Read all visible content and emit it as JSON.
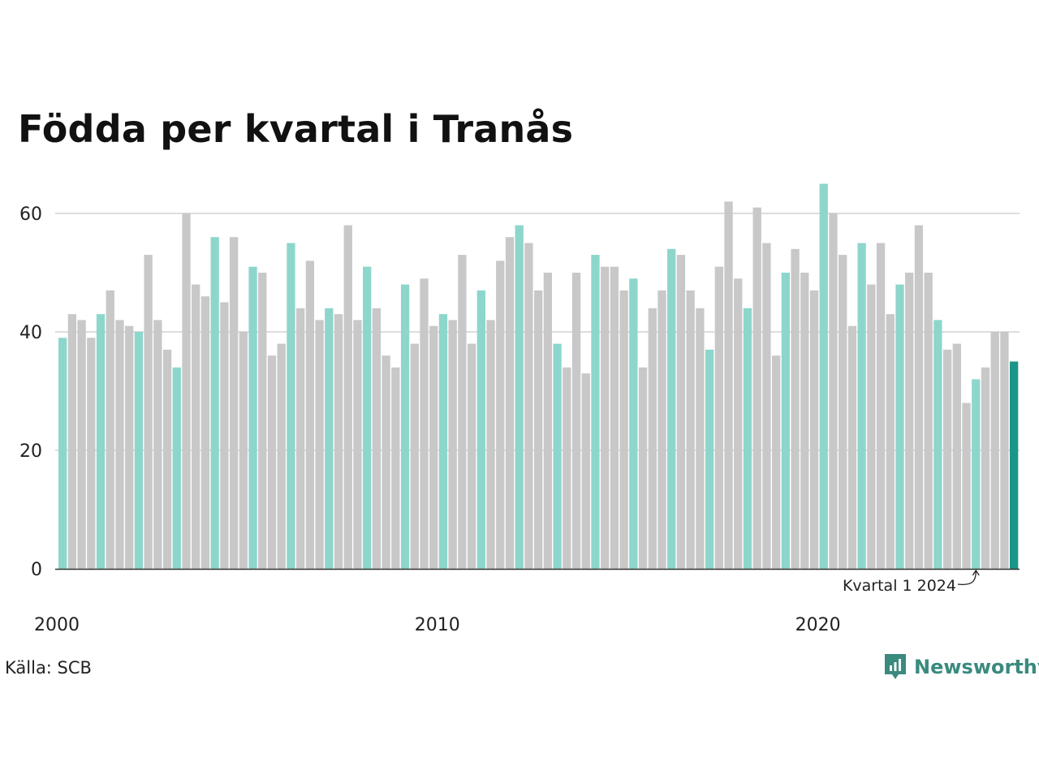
{
  "title": "Födda per kvartal i Tranås",
  "source": "Källa: SCB",
  "brand": "Newsworthy",
  "colors": {
    "q1": "#8dd6cc",
    "other": "#c8c8c8",
    "latest": "#1a9688",
    "grid": "#dddddd",
    "axis": "#333333",
    "brand": "#3a8a7e"
  },
  "chart_data": {
    "type": "bar",
    "start_year": 2000,
    "start_quarter": 1,
    "values": [
      39,
      43,
      42,
      39,
      43,
      47,
      42,
      41,
      40,
      53,
      42,
      37,
      34,
      60,
      48,
      46,
      56,
      45,
      56,
      40,
      51,
      50,
      36,
      38,
      55,
      44,
      52,
      42,
      44,
      43,
      58,
      42,
      51,
      44,
      36,
      34,
      48,
      38,
      49,
      41,
      43,
      42,
      53,
      38,
      47,
      42,
      52,
      56,
      58,
      55,
      47,
      50,
      38,
      34,
      50,
      33,
      53,
      51,
      51,
      47,
      49,
      34,
      44,
      47,
      54,
      53,
      47,
      44,
      37,
      51,
      62,
      49,
      44,
      61,
      55,
      36,
      50,
      54,
      50,
      47,
      65,
      60,
      53,
      41,
      55,
      48,
      55,
      43,
      48,
      50,
      58,
      50,
      42,
      37,
      38,
      28,
      32,
      34,
      40,
      40,
      35
    ],
    "y_ticks": [
      0,
      20,
      40,
      60
    ],
    "ylim": [
      0,
      65
    ],
    "x_tick_labels": [
      "2000",
      "2010",
      "2020"
    ],
    "annotation": "Kvartal 1 2024",
    "grid": true
  }
}
